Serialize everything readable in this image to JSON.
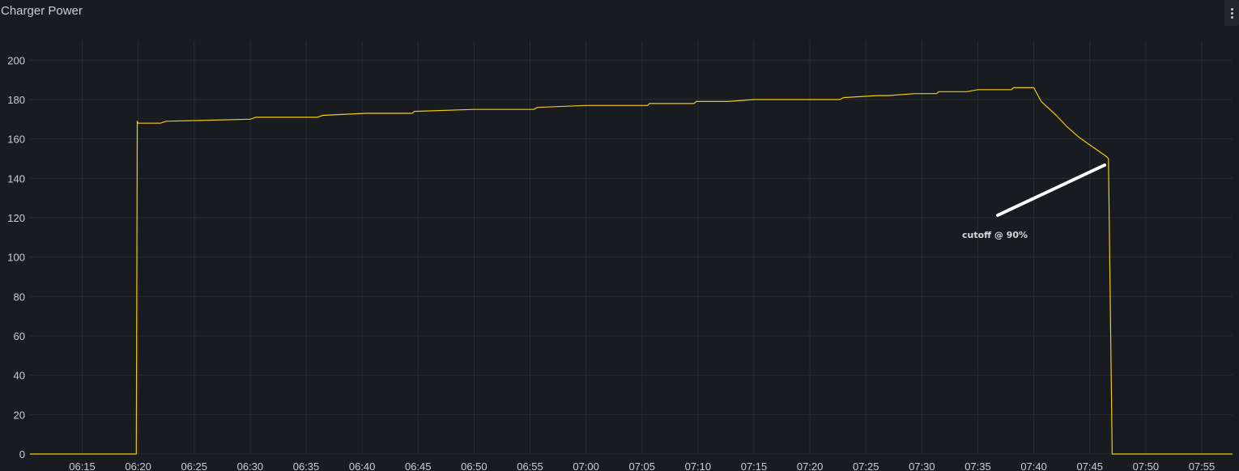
{
  "panel": {
    "title": "Charger Power",
    "menu_icon": "kebab-menu-icon"
  },
  "colors": {
    "background": "#181b1f",
    "grid": "#2a2d33",
    "series": "#f2cc0c",
    "text": "#ccccdc",
    "annotation": "#ffffff"
  },
  "annotation": {
    "text": "cutoff @ 90%"
  },
  "chart_data": {
    "type": "line",
    "title": "Charger Power",
    "xlabel": "",
    "ylabel": "",
    "ylim": [
      0,
      210
    ],
    "grid": true,
    "legend": "none",
    "yticks": [
      0,
      20,
      40,
      60,
      80,
      100,
      120,
      140,
      160,
      180,
      200
    ],
    "xticks": [
      "06:15",
      "06:20",
      "06:25",
      "06:30",
      "06:35",
      "06:40",
      "06:45",
      "06:50",
      "06:55",
      "07:00",
      "07:05",
      "07:10",
      "07:15",
      "07:20",
      "07:25",
      "07:30",
      "07:35",
      "07:40",
      "07:45",
      "07:50",
      "07:55"
    ],
    "xlim": [
      "06:10:20",
      "07:57:45"
    ],
    "series": [
      {
        "x": [
          "06:10:20",
          "06:19:50",
          "06:19:55",
          "06:20:00",
          "06:22:00",
          "06:22:30",
          "06:30:00",
          "06:30:30",
          "06:36:00",
          "06:36:30",
          "06:40:20",
          "06:44:30",
          "06:44:40",
          "06:50:00",
          "06:55:20",
          "06:55:40",
          "07:00:00",
          "07:05:30",
          "07:05:40",
          "07:09:40",
          "07:09:50",
          "07:12:30",
          "07:12:40",
          "07:15:00",
          "07:17:40",
          "07:22:40",
          "07:23:00",
          "07:26:00",
          "07:27:00",
          "07:29:20",
          "07:31:20",
          "07:31:30",
          "07:33:00",
          "07:34:00",
          "07:35:00",
          "07:38:00",
          "07:38:10",
          "07:39:50",
          "07:40:00",
          "07:40:40",
          "07:42:00",
          "07:43:00",
          "07:44:00",
          "07:45:00",
          "07:46:00",
          "07:46:30",
          "07:46:40",
          "07:47:00",
          "07:57:45"
        ],
        "y": [
          0,
          0,
          169,
          168,
          168,
          169,
          170,
          171,
          171,
          172,
          173,
          173,
          174,
          175,
          175,
          176,
          177,
          177,
          178,
          178,
          179,
          179,
          179,
          180,
          180,
          180,
          181,
          182,
          182,
          183,
          183,
          184,
          184,
          184,
          185,
          185,
          186,
          186,
          186,
          179,
          172,
          166,
          161,
          157,
          153,
          151,
          150,
          0,
          0
        ]
      }
    ]
  }
}
